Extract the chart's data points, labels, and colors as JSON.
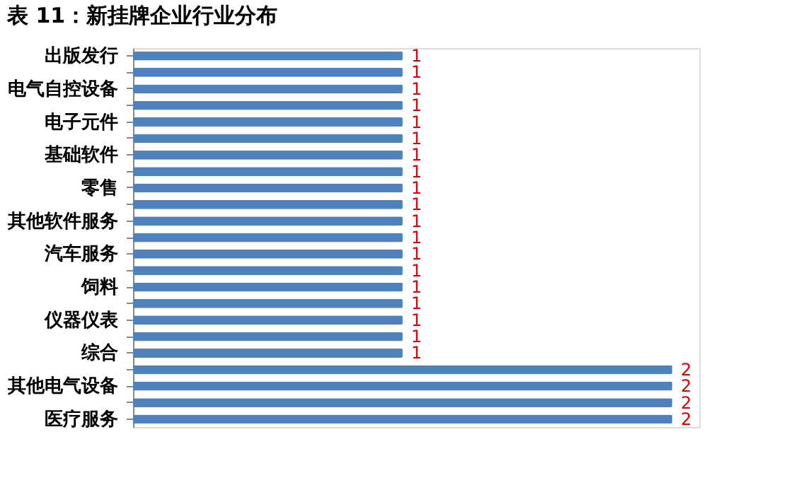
{
  "chart_data": {
    "type": "bar",
    "orientation": "horizontal",
    "title": "表 11：新挂牌企业行业分布",
    "categories": [
      "出版发行",
      null,
      "电气自控设备",
      null,
      "电子元件",
      null,
      "基础软件",
      null,
      "零售",
      null,
      "其他软件服务",
      null,
      "汽车服务",
      null,
      "饲料",
      null,
      "仪器仪表",
      null,
      "综合",
      null,
      "其他电气设备",
      null,
      "医疗服务"
    ],
    "values": [
      1,
      1,
      1,
      1,
      1,
      1,
      1,
      1,
      1,
      1,
      1,
      1,
      1,
      1,
      1,
      1,
      1,
      1,
      1,
      2,
      2,
      2,
      2
    ],
    "color": "#4f81bd",
    "data_labels": true,
    "grid": false
  }
}
